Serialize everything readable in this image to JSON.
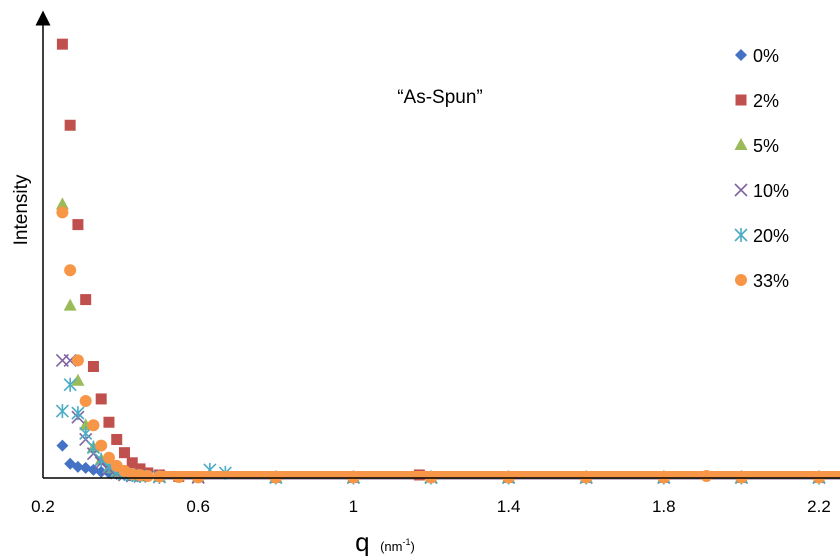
{
  "chart_data": {
    "type": "scatter",
    "title": "“As-Spun”",
    "xlabel_main": "q",
    "xlabel_unit": "(nm",
    "xlabel_unit_sup": "-1",
    "xlabel_unit_close": ")",
    "ylabel": "Intensity",
    "xlim": [
      0.2,
      2.25
    ],
    "ylim": [
      0,
      440
    ],
    "x_ticks": [
      0.2,
      0.6,
      1,
      1.4,
      1.8,
      2.2
    ],
    "x_tick_labels": [
      "0.2",
      "0.6",
      "1",
      "1.4",
      "1.8",
      "2.2"
    ],
    "grid": false,
    "legend_position": "right",
    "series": [
      {
        "name": "0%",
        "marker": "diamond",
        "color": "#4472C4",
        "x": [
          0.25,
          0.27,
          0.29,
          0.31,
          0.33,
          0.35,
          0.37,
          0.39,
          0.41,
          0.43,
          0.45,
          0.5,
          0.6,
          0.8,
          1.0,
          1.2,
          1.4,
          1.6,
          1.8,
          2.0,
          2.2
        ],
        "y": [
          32,
          14,
          11,
          10,
          8,
          6,
          5,
          4,
          3,
          2,
          1.5,
          1,
          0.5,
          0.3,
          0.3,
          0.3,
          0.3,
          0.3,
          0.3,
          0.3,
          0.3
        ]
      },
      {
        "name": "2%",
        "marker": "square",
        "color": "#C0504D",
        "x": [
          0.25,
          0.27,
          0.29,
          0.31,
          0.33,
          0.35,
          0.37,
          0.39,
          0.41,
          0.43,
          0.45,
          0.47,
          0.5,
          0.55,
          0.6,
          0.8,
          1.0,
          1.17,
          1.4,
          1.6,
          1.8,
          2.0,
          2.2
        ],
        "y": [
          428,
          348,
          250,
          176,
          110,
          78,
          55,
          38,
          25,
          15,
          9,
          5,
          3,
          1.5,
          1,
          0.5,
          0.5,
          3,
          0.5,
          0.5,
          0.5,
          0.5,
          0.5
        ]
      },
      {
        "name": "5%",
        "marker": "triangle",
        "color": "#9BBB59",
        "x": [
          0.25,
          0.27,
          0.29,
          0.31,
          0.33,
          0.35,
          0.37,
          0.39,
          0.41,
          0.43,
          0.45,
          0.5,
          0.6,
          0.8,
          1.0,
          1.2,
          1.4,
          1.6,
          1.8,
          2.0,
          2.2
        ],
        "y": [
          270,
          170,
          96,
          52,
          30,
          18,
          10,
          6,
          4,
          2,
          1.5,
          1,
          0.5,
          0.4,
          0.4,
          0.4,
          0.4,
          0.4,
          0.4,
          0.4,
          0.4
        ]
      },
      {
        "name": "10%",
        "marker": "x",
        "color": "#8064A2",
        "x": [
          0.25,
          0.27,
          0.29,
          0.31,
          0.33,
          0.35,
          0.37,
          0.39,
          0.41,
          0.43,
          0.45,
          0.5,
          0.6,
          0.8,
          1.0,
          1.2,
          1.4,
          1.6,
          1.8,
          2.0,
          2.2
        ],
        "y": [
          116,
          116,
          60,
          38,
          24,
          15,
          9,
          5,
          3,
          2,
          1.5,
          1,
          0.5,
          0.4,
          0.4,
          0.4,
          0.4,
          0.4,
          0.4,
          0.4,
          0.4
        ]
      },
      {
        "name": "20%",
        "marker": "asterisk",
        "color": "#4BACC6",
        "x": [
          0.25,
          0.27,
          0.29,
          0.31,
          0.33,
          0.35,
          0.37,
          0.39,
          0.41,
          0.43,
          0.45,
          0.5,
          0.63,
          0.67,
          0.8,
          1.0,
          1.2,
          1.4,
          1.6,
          1.8,
          2.0,
          2.2
        ],
        "y": [
          66,
          92,
          64,
          44,
          30,
          18,
          11,
          6,
          4,
          3,
          2,
          1,
          8,
          5,
          0.5,
          0.5,
          0.5,
          0.5,
          0.5,
          0.5,
          0.5,
          0.5
        ]
      },
      {
        "name": "33%",
        "marker": "circle",
        "color": "#F79646",
        "x": [
          0.25,
          0.27,
          0.29,
          0.31,
          0.33,
          0.35,
          0.37,
          0.39,
          0.41,
          0.43,
          0.45,
          0.47,
          0.5,
          0.55,
          0.6,
          0.8,
          1.0,
          1.2,
          1.4,
          1.6,
          1.8,
          1.91,
          2.0,
          2.2
        ],
        "y": [
          262,
          205,
          116,
          76,
          52,
          32,
          20,
          12,
          7,
          4,
          3,
          2,
          1.5,
          1,
          0.6,
          0.5,
          0.5,
          0.5,
          0.5,
          0.5,
          0.5,
          2,
          0.5,
          0.5
        ]
      }
    ]
  }
}
